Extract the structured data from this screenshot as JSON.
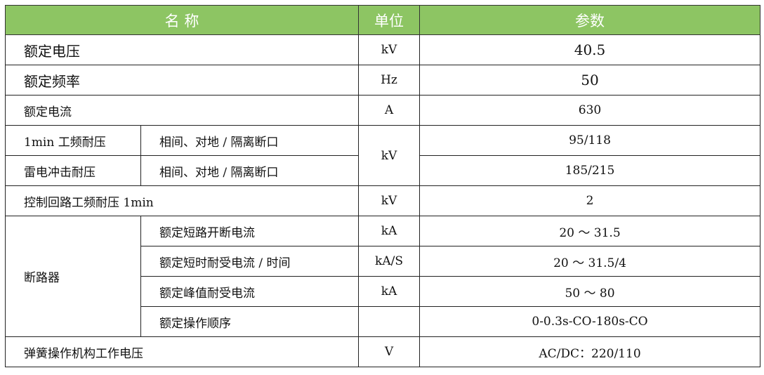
{
  "header": {
    "name": "名 称",
    "unit": "单位",
    "param": "参数",
    "color": "#8dc563"
  },
  "rows": [
    {
      "name": "额定电压",
      "unit": "kV",
      "value": "40.5"
    },
    {
      "name": "额定频率",
      "unit": "Hz",
      "value": "50"
    },
    {
      "name": "额定电流",
      "unit": "A",
      "value": "630"
    },
    {
      "name": "1min 工频耐压",
      "sub": "相间、对地 / 隔离断口",
      "value": "95/118"
    },
    {
      "name": "雷电冲击耐压",
      "sub": "相间、对地 / 隔离断口",
      "value": "185/215"
    },
    {
      "name": "控制回路工频耐压 1min",
      "unit": "kV",
      "value": "2"
    },
    {
      "name": "断路器",
      "sub": "额定短路开断电流",
      "unit": "kA",
      "value": "20 ～ 31.5"
    },
    {
      "sub": "额定短时耐受电流 / 时间",
      "unit": "kA/S",
      "value": "20 ～ 31.5/4"
    },
    {
      "sub": "额定峰值耐受电流",
      "unit": "kA",
      "value": "50 ～ 80"
    },
    {
      "sub": "额定操作顺序",
      "unit": "",
      "value": "0-0.3s-CO-180s-CO"
    },
    {
      "name": "弹簧操作机构工作电压",
      "unit": "V",
      "value": "AC/DC：220/110"
    }
  ],
  "shared_unit_withstand": "kV"
}
